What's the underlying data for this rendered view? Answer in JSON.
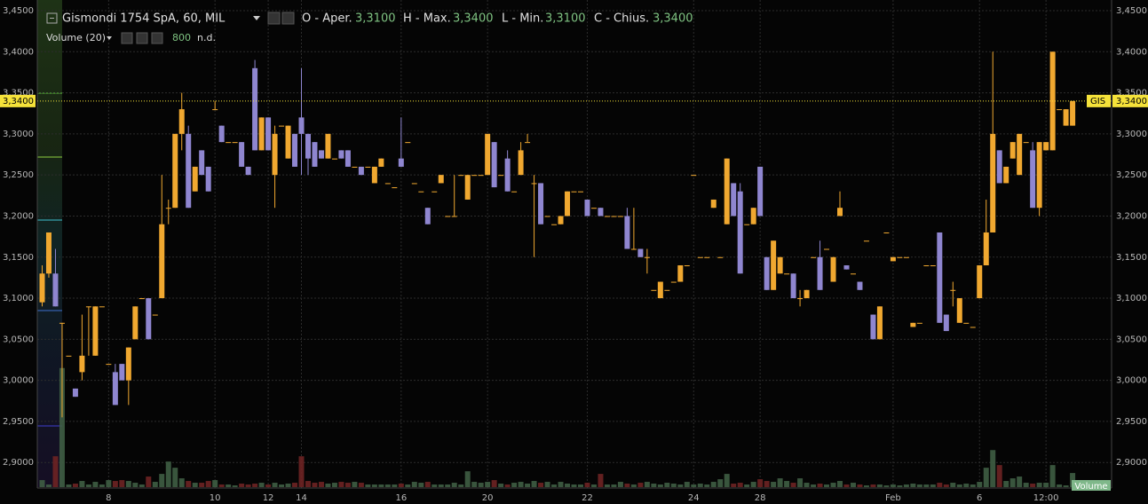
{
  "header": {
    "title": "Gismondi 1754 SpA, 60, MIL",
    "ohlc": [
      {
        "name": "O - Aper.",
        "value": "3,3100"
      },
      {
        "name": "H - Max.",
        "value": "3,3400"
      },
      {
        "name": "L - Min.",
        "value": "3,3100"
      },
      {
        "name": "C - Chius.",
        "value": "3,3400"
      }
    ],
    "volume": {
      "name": "Volume (20)",
      "value": 800,
      "status": "n.d."
    }
  },
  "chart_data": {
    "type": "candlestick",
    "symbol": "GIS",
    "volume_label": "Volume",
    "last_price": {
      "value": 3.34,
      "label": "3,3400"
    },
    "up_color": "#f0a830",
    "down_color": "#8f86d0",
    "volume_up_color": "#3f5e44",
    "volume_down_color": "#6e2424",
    "price_line_color": "#f5e23a",
    "grid": true,
    "ylim": [
      2.87,
      3.45
    ],
    "yticks": [
      {
        "value": 3.45,
        "label": "3,4500"
      },
      {
        "value": 3.4,
        "label": "3,4000"
      },
      {
        "value": 3.35,
        "label": "3,3500"
      },
      {
        "value": 3.3,
        "label": "3,3000"
      },
      {
        "value": 3.25,
        "label": "3,2500"
      },
      {
        "value": 3.2,
        "label": "3,2000"
      },
      {
        "value": 3.15,
        "label": "3,1500"
      },
      {
        "value": 3.1,
        "label": "3,1000"
      },
      {
        "value": 3.05,
        "label": "3,0500"
      },
      {
        "value": 3.0,
        "label": "3,0000"
      },
      {
        "value": 2.95,
        "label": "2,9500"
      },
      {
        "value": 2.9,
        "label": "2,9000"
      }
    ],
    "xlim": [
      -1,
      161
    ],
    "xticks": [
      {
        "value": 10,
        "label": "8"
      },
      {
        "value": 26,
        "label": "10"
      },
      {
        "value": 34,
        "label": "12"
      },
      {
        "value": 39,
        "label": "14"
      },
      {
        "value": 54,
        "label": "16"
      },
      {
        "value": 67,
        "label": "20"
      },
      {
        "value": 82,
        "label": "22"
      },
      {
        "value": 98,
        "label": "24"
      },
      {
        "value": 108,
        "label": "28"
      },
      {
        "value": 128,
        "label": "Feb"
      },
      {
        "value": 141,
        "label": "6"
      },
      {
        "value": 151,
        "label": "12:00"
      }
    ],
    "volume_ylim": [
      0,
      27000
    ],
    "open": [
      3.095,
      3.13,
      3.13,
      3.07,
      3.03,
      2.99,
      3.01,
      3.09,
      3.03,
      3.09,
      3.02,
      3.01,
      3.02,
      3.0,
      3.05,
      3.1,
      3.1,
      3.08,
      3.1,
      3.21,
      3.21,
      3.3,
      3.3,
      3.23,
      3.28,
      3.26,
      3.33,
      3.31,
      3.29,
      3.29,
      3.29,
      3.26,
      3.38,
      3.28,
      3.32,
      3.25,
      3.31,
      3.27,
      3.3,
      3.32,
      3.3,
      3.29,
      3.28,
      3.27,
      3.27,
      3.28,
      3.28,
      3.26,
      3.26,
      3.26,
      3.24,
      3.26,
      3.24,
      3.235,
      3.27,
      3.29,
      3.24,
      3.23,
      3.21,
      3.23,
      3.24,
      3.2,
      3.2,
      3.25,
      3.22,
      3.25,
      3.25,
      3.25,
      3.29,
      3.25,
      3.27,
      3.23,
      3.25,
      3.29,
      3.24,
      3.24,
      3.2,
      3.19,
      3.19,
      3.2,
      3.23,
      3.23,
      3.22,
      3.21,
      3.21,
      3.2,
      3.2,
      3.2,
      3.2,
      3.16,
      3.16,
      3.15,
      3.11,
      3.1,
      3.11,
      3.12,
      3.12,
      3.14,
      3.25,
      3.15,
      3.15,
      3.21,
      3.15,
      3.19,
      3.24,
      3.23,
      3.19,
      3.19,
      3.26,
      3.15,
      3.11,
      3.13,
      3.13,
      3.13,
      3.1,
      3.1,
      3.15,
      3.15,
      3.16,
      3.12,
      3.2,
      3.14,
      3.13,
      3.12,
      3.17,
      3.08,
      3.05,
      3.18,
      3.145,
      3.15,
      3.15,
      3.065,
      3.07,
      3.14,
      3.14,
      3.18,
      3.08,
      3.11,
      3.07,
      3.07,
      3.065,
      3.1,
      3.14,
      3.18,
      3.28,
      3.24,
      3.27,
      3.25,
      3.29,
      3.28,
      3.21,
      3.28,
      3.28,
      3.33,
      3.31,
      3.31
    ],
    "high": [
      3.14,
      3.18,
      3.16,
      3.07,
      3.03,
      2.99,
      3.08,
      3.09,
      3.09,
      3.09,
      3.02,
      3.02,
      3.02,
      3.04,
      3.09,
      3.1,
      3.1,
      3.08,
      3.25,
      3.22,
      3.3,
      3.35,
      3.31,
      3.26,
      3.28,
      3.26,
      3.34,
      3.31,
      3.29,
      3.29,
      3.29,
      3.26,
      3.39,
      3.32,
      3.32,
      3.31,
      3.31,
      3.31,
      3.3,
      3.38,
      3.3,
      3.29,
      3.28,
      3.3,
      3.27,
      3.28,
      3.28,
      3.26,
      3.26,
      3.26,
      3.26,
      3.27,
      3.24,
      3.235,
      3.32,
      3.29,
      3.24,
      3.23,
      3.21,
      3.23,
      3.25,
      3.2,
      3.25,
      3.25,
      3.25,
      3.25,
      3.25,
      3.3,
      3.29,
      3.25,
      3.28,
      3.23,
      3.29,
      3.3,
      3.25,
      3.24,
      3.2,
      3.19,
      3.2,
      3.23,
      3.23,
      3.23,
      3.22,
      3.21,
      3.21,
      3.2,
      3.2,
      3.2,
      3.21,
      3.21,
      3.16,
      3.16,
      3.11,
      3.12,
      3.11,
      3.12,
      3.14,
      3.14,
      3.25,
      3.15,
      3.15,
      3.22,
      3.15,
      3.27,
      3.24,
      3.24,
      3.19,
      3.21,
      3.26,
      3.15,
      3.17,
      3.15,
      3.13,
      3.13,
      3.11,
      3.11,
      3.15,
      3.17,
      3.16,
      3.15,
      3.23,
      3.14,
      3.13,
      3.12,
      3.17,
      3.08,
      3.09,
      3.18,
      3.15,
      3.15,
      3.15,
      3.07,
      3.07,
      3.14,
      3.14,
      3.18,
      3.08,
      3.12,
      3.1,
      3.07,
      3.065,
      3.14,
      3.22,
      3.4,
      3.28,
      3.26,
      3.29,
      3.3,
      3.29,
      3.29,
      3.29,
      3.29,
      3.4,
      3.33,
      3.33,
      3.34
    ],
    "low": [
      3.09,
      3.125,
      3.09,
      2.955,
      3.03,
      2.98,
      3.0,
      3.03,
      3.03,
      3.09,
      3.02,
      2.97,
      3.0,
      2.97,
      3.05,
      3.1,
      3.05,
      3.08,
      3.1,
      3.19,
      3.21,
      3.28,
      3.21,
      3.23,
      3.25,
      3.23,
      3.33,
      3.29,
      3.29,
      3.29,
      3.26,
      3.25,
      3.28,
      3.28,
      3.28,
      3.21,
      3.31,
      3.27,
      3.26,
      3.25,
      3.25,
      3.26,
      3.27,
      3.27,
      3.27,
      3.27,
      3.26,
      3.26,
      3.25,
      3.26,
      3.24,
      3.26,
      3.24,
      3.235,
      3.26,
      3.29,
      3.24,
      3.23,
      3.19,
      3.23,
      3.24,
      3.2,
      3.2,
      3.25,
      3.22,
      3.25,
      3.25,
      3.25,
      3.235,
      3.25,
      3.23,
      3.23,
      3.25,
      3.29,
      3.15,
      3.19,
      3.2,
      3.19,
      3.19,
      3.2,
      3.23,
      3.23,
      3.2,
      3.21,
      3.2,
      3.2,
      3.2,
      3.2,
      3.16,
      3.16,
      3.15,
      3.13,
      3.11,
      3.1,
      3.11,
      3.12,
      3.12,
      3.14,
      3.25,
      3.15,
      3.15,
      3.21,
      3.15,
      3.19,
      3.2,
      3.13,
      3.19,
      3.19,
      3.2,
      3.11,
      3.11,
      3.13,
      3.13,
      3.1,
      3.09,
      3.1,
      3.15,
      3.11,
      3.16,
      3.12,
      3.2,
      3.135,
      3.13,
      3.11,
      3.17,
      3.05,
      3.05,
      3.18,
      3.145,
      3.15,
      3.15,
      3.065,
      3.07,
      3.14,
      3.14,
      3.07,
      3.06,
      3.09,
      3.07,
      3.07,
      3.065,
      3.1,
      3.14,
      3.18,
      3.24,
      3.24,
      3.27,
      3.25,
      3.29,
      3.21,
      3.2,
      3.28,
      3.28,
      3.33,
      3.31,
      3.31
    ],
    "close": [
      3.13,
      3.18,
      3.09,
      3.07,
      3.03,
      2.98,
      3.03,
      3.09,
      3.09,
      3.09,
      3.02,
      2.97,
      3.0,
      3.04,
      3.09,
      3.1,
      3.05,
      3.08,
      3.19,
      3.21,
      3.3,
      3.33,
      3.21,
      3.26,
      3.25,
      3.23,
      3.33,
      3.29,
      3.29,
      3.29,
      3.26,
      3.25,
      3.28,
      3.32,
      3.28,
      3.3,
      3.31,
      3.31,
      3.26,
      3.3,
      3.27,
      3.26,
      3.27,
      3.3,
      3.27,
      3.27,
      3.26,
      3.26,
      3.25,
      3.26,
      3.26,
      3.27,
      3.24,
      3.235,
      3.26,
      3.29,
      3.24,
      3.23,
      3.19,
      3.23,
      3.25,
      3.2,
      3.2,
      3.25,
      3.25,
      3.25,
      3.25,
      3.3,
      3.235,
      3.25,
      3.23,
      3.23,
      3.28,
      3.29,
      3.24,
      3.19,
      3.2,
      3.19,
      3.2,
      3.23,
      3.23,
      3.23,
      3.2,
      3.21,
      3.2,
      3.2,
      3.2,
      3.2,
      3.16,
      3.16,
      3.15,
      3.15,
      3.11,
      3.12,
      3.11,
      3.12,
      3.14,
      3.14,
      3.25,
      3.15,
      3.15,
      3.22,
      3.15,
      3.27,
      3.2,
      3.13,
      3.19,
      3.21,
      3.2,
      3.11,
      3.17,
      3.15,
      3.13,
      3.1,
      3.1,
      3.11,
      3.15,
      3.11,
      3.16,
      3.15,
      3.21,
      3.135,
      3.13,
      3.11,
      3.17,
      3.05,
      3.09,
      3.18,
      3.15,
      3.15,
      3.15,
      3.07,
      3.07,
      3.14,
      3.14,
      3.07,
      3.06,
      3.11,
      3.1,
      3.07,
      3.065,
      3.14,
      3.18,
      3.3,
      3.24,
      3.26,
      3.29,
      3.3,
      3.29,
      3.21,
      3.29,
      3.29,
      3.4,
      3.33,
      3.33,
      3.34
    ],
    "volume": [
      400,
      150,
      1750,
      6750,
      150,
      200,
      350,
      150,
      300,
      150,
      400,
      350,
      400,
      350,
      250,
      150,
      600,
      300,
      750,
      1450,
      1100,
      500,
      350,
      250,
      250,
      350,
      400,
      150,
      150,
      100,
      200,
      150,
      200,
      250,
      150,
      250,
      150,
      200,
      250,
      1750,
      350,
      250,
      300,
      200,
      250,
      300,
      250,
      300,
      250,
      150,
      150,
      150,
      150,
      150,
      200,
      150,
      300,
      250,
      300,
      150,
      150,
      150,
      250,
      150,
      900,
      300,
      250,
      300,
      400,
      200,
      150,
      250,
      300,
      200,
      350,
      250,
      300,
      150,
      300,
      200,
      150,
      150,
      250,
      150,
      750,
      150,
      150,
      300,
      200,
      150,
      250,
      300,
      200,
      150,
      250,
      200,
      150,
      300,
      150,
      200,
      150,
      300,
      450,
      750,
      200,
      250,
      150,
      300,
      450,
      350,
      300,
      500,
      350,
      250,
      500,
      250,
      150,
      200,
      150,
      250,
      350,
      150,
      250,
      150,
      100,
      150,
      150,
      100,
      150,
      100,
      150,
      200,
      150,
      150,
      150,
      250,
      150,
      250,
      150,
      200,
      150,
      300,
      1100,
      2100,
      1250,
      350,
      500,
      600,
      250,
      200,
      250,
      250,
      1250,
      150,
      100,
      800
    ]
  }
}
